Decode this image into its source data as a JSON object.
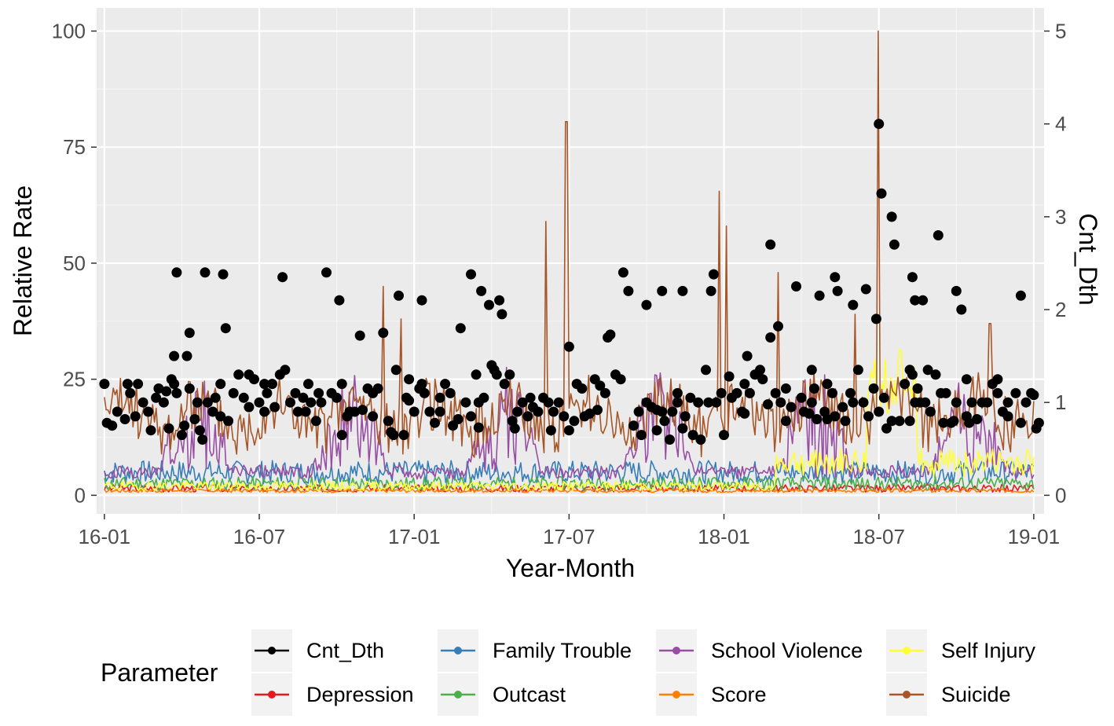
{
  "chart_data": {
    "type": "line",
    "xlabel": "Year-Month",
    "ylabel": "Relative Rate",
    "y2label": "Cnt_Dth",
    "x_ticks": [
      "16-01",
      "16-07",
      "17-01",
      "17-07",
      "18-01",
      "18-07",
      "19-01"
    ],
    "y_ticks": [
      "0",
      "25",
      "50",
      "75",
      "100"
    ],
    "y2_ticks": [
      "0",
      "1",
      "2",
      "3",
      "4",
      "5"
    ],
    "xlim_months": [
      -0.3,
      36.4
    ],
    "ylim": [
      -4,
      105
    ],
    "y2lim": [
      0,
      5
    ],
    "legend_title": "Parameter",
    "legend_position": "bottom",
    "series": [
      {
        "name": "Cnt_Dth",
        "color": "#000000",
        "kind": "points",
        "points": [
          [
            0.0,
            1.2
          ],
          [
            0.1,
            0.78
          ],
          [
            0.3,
            0.75
          ],
          [
            0.5,
            0.9
          ],
          [
            0.8,
            0.82
          ],
          [
            1.0,
            1.1
          ],
          [
            1.2,
            0.85
          ],
          [
            1.3,
            1.2
          ],
          [
            1.5,
            1.0
          ],
          [
            1.7,
            0.9
          ],
          [
            1.8,
            0.7
          ],
          [
            2.0,
            1.05
          ],
          [
            2.1,
            1.15
          ],
          [
            2.3,
            1.0
          ],
          [
            2.5,
            0.72
          ],
          [
            2.6,
            1.25
          ],
          [
            2.7,
            1.2
          ],
          [
            2.8,
            1.1
          ],
          [
            3.0,
            0.65
          ],
          [
            3.1,
            0.75
          ],
          [
            3.2,
            1.5
          ],
          [
            3.3,
            1.15
          ],
          [
            3.5,
            0.82
          ],
          [
            3.6,
            1.0
          ],
          [
            3.7,
            0.7
          ],
          [
            3.8,
            0.6
          ],
          [
            3.9,
            2.4
          ],
          [
            4.0,
            1.0
          ],
          [
            4.2,
            0.9
          ],
          [
            4.3,
            1.05
          ],
          [
            4.5,
            1.2
          ],
          [
            4.7,
            1.8
          ],
          [
            4.8,
            0.8
          ],
          [
            5.0,
            1.1
          ],
          [
            5.2,
            1.3
          ],
          [
            5.4,
            1.05
          ],
          [
            5.6,
            0.95
          ],
          [
            5.8,
            1.25
          ],
          [
            6.0,
            1.0
          ],
          [
            6.2,
            0.9
          ],
          [
            6.3,
            1.1
          ],
          [
            6.5,
            1.2
          ],
          [
            6.6,
            0.95
          ],
          [
            6.8,
            1.3
          ],
          [
            6.9,
            2.35
          ],
          [
            7.0,
            1.35
          ],
          [
            7.2,
            1.0
          ],
          [
            7.4,
            1.1
          ],
          [
            7.5,
            0.9
          ],
          [
            7.7,
            1.05
          ],
          [
            7.9,
            1.2
          ],
          [
            8.0,
            1.0
          ],
          [
            8.2,
            0.8
          ],
          [
            8.3,
            1.1
          ],
          [
            8.4,
            1.0
          ],
          [
            8.6,
            2.4
          ],
          [
            8.8,
            1.1
          ],
          [
            9.0,
            1.05
          ],
          [
            9.2,
            1.2
          ],
          [
            9.4,
            0.85
          ],
          [
            9.5,
            0.9
          ],
          [
            9.7,
            0.9
          ],
          [
            9.9,
            1.72
          ],
          [
            10.0,
            0.92
          ],
          [
            10.2,
            1.15
          ],
          [
            10.4,
            1.1
          ],
          [
            10.6,
            1.15
          ],
          [
            10.8,
            1.75
          ],
          [
            11.0,
            0.8
          ],
          [
            11.1,
            0.68
          ],
          [
            11.2,
            0.65
          ],
          [
            11.3,
            1.35
          ],
          [
            11.4,
            2.15
          ],
          [
            11.6,
            0.65
          ],
          [
            11.7,
            1.05
          ],
          [
            11.8,
            1.25
          ],
          [
            12.0,
            0.9
          ],
          [
            12.2,
            1.15
          ],
          [
            12.3,
            1.2
          ],
          [
            12.4,
            1.1
          ],
          [
            12.6,
            0.9
          ],
          [
            12.8,
            0.78
          ],
          [
            13.0,
            1.05
          ],
          [
            13.2,
            1.2
          ],
          [
            13.4,
            1.1
          ],
          [
            13.5,
            0.75
          ],
          [
            13.7,
            0.82
          ],
          [
            13.8,
            1.8
          ],
          [
            14.0,
            1.0
          ],
          [
            14.2,
            0.85
          ],
          [
            14.4,
            1.3
          ],
          [
            14.5,
            0.73
          ],
          [
            14.7,
            1.05
          ],
          [
            14.9,
            2.05
          ],
          [
            15.0,
            1.4
          ],
          [
            15.1,
            1.35
          ],
          [
            15.2,
            1.3
          ],
          [
            15.3,
            2.1
          ],
          [
            15.4,
            1.95
          ],
          [
            15.5,
            1.2
          ],
          [
            15.7,
            1.3
          ],
          [
            15.8,
            0.8
          ],
          [
            15.9,
            0.72
          ],
          [
            16.0,
            0.9
          ],
          [
            16.2,
            1.0
          ],
          [
            16.4,
            0.85
          ],
          [
            16.5,
            1.05
          ],
          [
            16.6,
            0.95
          ],
          [
            16.8,
            0.9
          ],
          [
            17.0,
            1.05
          ],
          [
            17.2,
            1.0
          ],
          [
            17.4,
            0.9
          ],
          [
            17.6,
            1.0
          ],
          [
            17.8,
            0.85
          ],
          [
            18.0,
            0.7
          ],
          [
            18.2,
            0.8
          ],
          [
            18.3,
            1.2
          ],
          [
            18.5,
            1.15
          ],
          [
            18.6,
            0.85
          ],
          [
            18.8,
            0.88
          ],
          [
            19.0,
            1.25
          ],
          [
            19.2,
            1.18
          ],
          [
            19.4,
            1.1
          ],
          [
            19.5,
            1.7
          ],
          [
            19.6,
            1.73
          ],
          [
            19.8,
            1.3
          ],
          [
            20.0,
            1.25
          ],
          [
            20.1,
            2.4
          ],
          [
            20.3,
            2.2
          ],
          [
            20.5,
            0.75
          ],
          [
            20.7,
            0.9
          ],
          [
            20.8,
            0.65
          ],
          [
            21.0,
            1.0
          ],
          [
            21.2,
            0.95
          ],
          [
            21.4,
            0.7
          ],
          [
            21.6,
            0.9
          ],
          [
            21.7,
            0.8
          ],
          [
            21.9,
            0.6
          ],
          [
            22.0,
            0.9
          ],
          [
            22.2,
            1.0
          ],
          [
            22.4,
            0.72
          ],
          [
            22.5,
            0.85
          ],
          [
            22.7,
            1.05
          ],
          [
            22.8,
            0.65
          ],
          [
            23.0,
            1.0
          ],
          [
            23.1,
            0.6
          ],
          [
            23.3,
            1.35
          ],
          [
            23.4,
            1.0
          ],
          [
            23.5,
            2.2
          ],
          [
            23.7,
            1.0
          ],
          [
            23.9,
            1.1
          ],
          [
            24.0,
            0.65
          ],
          [
            24.2,
            1.28
          ],
          [
            24.3,
            1.05
          ],
          [
            24.5,
            1.1
          ],
          [
            24.7,
            0.9
          ],
          [
            24.8,
            1.2
          ],
          [
            25.0,
            1.1
          ],
          [
            25.2,
            1.3
          ],
          [
            25.4,
            1.35
          ],
          [
            25.5,
            1.25
          ],
          [
            25.7,
            0.98
          ],
          [
            25.8,
            1.7
          ],
          [
            26.0,
            1.1
          ],
          [
            26.2,
            1.0
          ],
          [
            26.4,
            1.15
          ],
          [
            26.6,
            0.95
          ],
          [
            26.8,
            2.25
          ],
          [
            27.0,
            1.05
          ],
          [
            27.1,
            0.9
          ],
          [
            27.3,
            0.88
          ],
          [
            27.4,
            1.0
          ],
          [
            27.5,
            1.15
          ],
          [
            27.6,
            0.82
          ],
          [
            27.7,
            2.15
          ],
          [
            27.9,
            0.9
          ],
          [
            28.0,
            0.82
          ],
          [
            28.2,
            1.1
          ],
          [
            28.3,
            0.85
          ],
          [
            28.4,
            2.2
          ],
          [
            28.6,
            0.95
          ],
          [
            28.7,
            0.8
          ],
          [
            28.9,
            1.1
          ],
          [
            29.0,
            1.0
          ],
          [
            29.2,
            1.35
          ],
          [
            29.4,
            1.0
          ],
          [
            29.5,
            2.22
          ],
          [
            29.6,
            0.85
          ],
          [
            29.8,
            1.15
          ],
          [
            30.0,
            0.9
          ],
          [
            30.3,
            0.72
          ],
          [
            30.5,
            0.8
          ],
          [
            30.6,
            2.7
          ],
          [
            30.8,
            0.8
          ],
          [
            31.0,
            1.2
          ],
          [
            31.2,
            1.35
          ],
          [
            31.3,
            1.3
          ],
          [
            31.4,
            1.0
          ],
          [
            31.5,
            1.15
          ],
          [
            31.6,
            1.0
          ],
          [
            31.7,
            2.1
          ],
          [
            31.8,
            1.0
          ],
          [
            31.9,
            1.35
          ],
          [
            32.0,
            0.9
          ],
          [
            32.2,
            1.3
          ],
          [
            32.4,
            1.1
          ],
          [
            32.5,
            0.78
          ],
          [
            32.6,
            1.1
          ],
          [
            32.8,
            0.78
          ],
          [
            32.9,
            0.8
          ],
          [
            33.0,
            1.0
          ],
          [
            33.2,
            2.0
          ],
          [
            33.4,
            0.85
          ],
          [
            33.5,
            0.78
          ],
          [
            33.6,
            1.0
          ],
          [
            33.8,
            0.82
          ],
          [
            34.0,
            1.0
          ],
          [
            34.2,
            1.0
          ],
          [
            34.4,
            1.2
          ],
          [
            34.6,
            1.1
          ],
          [
            34.8,
            0.9
          ],
          [
            35.0,
            0.85
          ],
          [
            35.3,
            1.1
          ],
          [
            35.5,
            0.78
          ],
          [
            35.7,
            1.0
          ],
          [
            35.9,
            1.1
          ],
          [
            36.0,
            1.08
          ],
          [
            36.1,
            0.72
          ],
          [
            36.2,
            0.78
          ],
          [
            0.9,
            1.2
          ],
          [
            2.4,
            1.12
          ],
          [
            4.5,
            0.85
          ],
          [
            5.6,
            1.3
          ],
          [
            6.2,
            1.2
          ],
          [
            7.8,
            0.9
          ],
          [
            9.2,
            0.65
          ],
          [
            10.4,
            0.85
          ],
          [
            11.8,
            1.02
          ],
          [
            13.0,
            0.9
          ],
          [
            14.5,
            1.0
          ],
          [
            17.3,
            0.7
          ],
          [
            19.1,
            0.92
          ],
          [
            21.4,
            0.92
          ],
          [
            22.2,
            1.1
          ],
          [
            24.8,
            0.88
          ],
          [
            26.4,
            0.8
          ],
          [
            28.0,
            1.2
          ],
          [
            30.2,
            1.05
          ],
          [
            31.2,
            0.8
          ],
          [
            33.4,
            1.25
          ],
          [
            35.0,
            1.0
          ],
          [
            2.8,
            2.4
          ],
          [
            2.7,
            1.5
          ],
          [
            3.3,
            1.75
          ],
          [
            4.6,
            2.38
          ],
          [
            9.1,
            2.1
          ],
          [
            12.3,
            2.1
          ],
          [
            14.2,
            2.38
          ],
          [
            14.6,
            2.2
          ],
          [
            18.0,
            1.6
          ],
          [
            21.0,
            2.05
          ],
          [
            21.6,
            2.2
          ],
          [
            22.4,
            2.2
          ],
          [
            23.6,
            2.38
          ],
          [
            24.9,
            1.5
          ],
          [
            25.8,
            2.7
          ],
          [
            26.1,
            1.82
          ],
          [
            27.4,
            1.35
          ],
          [
            28.3,
            2.35
          ],
          [
            29.0,
            2.05
          ],
          [
            29.9,
            1.9
          ],
          [
            30.0,
            4.0
          ],
          [
            30.1,
            3.25
          ],
          [
            30.5,
            3.0
          ],
          [
            31.3,
            2.35
          ],
          [
            31.4,
            2.1
          ],
          [
            32.3,
            2.8
          ],
          [
            33.0,
            2.2
          ],
          [
            34.6,
            1.25
          ],
          [
            35.5,
            2.15
          ]
        ]
      },
      {
        "name": "Depression",
        "color": "#e41a1c",
        "kind": "line",
        "base": 1.5,
        "amp": 0.8,
        "seed": 3
      },
      {
        "name": "Family Trouble",
        "color": "#377eb8",
        "kind": "line",
        "base": 5,
        "amp": 2.5,
        "seed": 7
      },
      {
        "name": "Outcast",
        "color": "#4daf4a",
        "kind": "line",
        "base": 2.5,
        "amp": 1.5,
        "seed": 11
      },
      {
        "name": "School Violence",
        "color": "#984ea3",
        "kind": "line",
        "base": 3.5,
        "amp": 5,
        "seed": 13
      },
      {
        "name": "Score",
        "color": "#ff7f00",
        "kind": "line",
        "base": 1,
        "amp": 0.4,
        "seed": 17
      },
      {
        "name": "Self Injury",
        "color": "#ffff33",
        "kind": "line",
        "base": 2,
        "amp": 1,
        "seed": 19
      },
      {
        "name": "Suicide",
        "color": "#a65628",
        "kind": "line",
        "base": 17,
        "amp": 4,
        "seed": 23,
        "peaks": [
          [
            10.8,
            45
          ],
          [
            11.5,
            38
          ],
          [
            17.1,
            59
          ],
          [
            17.9,
            80.5
          ],
          [
            23.8,
            65.5
          ],
          [
            24.1,
            58
          ],
          [
            26.1,
            48
          ],
          [
            29.1,
            39
          ],
          [
            30.0,
            100
          ],
          [
            34.3,
            37
          ]
        ]
      }
    ],
    "legend": [
      [
        "Cnt_Dth",
        "Family Trouble",
        "School Violence",
        "Self Injury"
      ],
      [
        "Depression",
        "Outcast",
        "Score",
        "Suicide"
      ]
    ]
  }
}
